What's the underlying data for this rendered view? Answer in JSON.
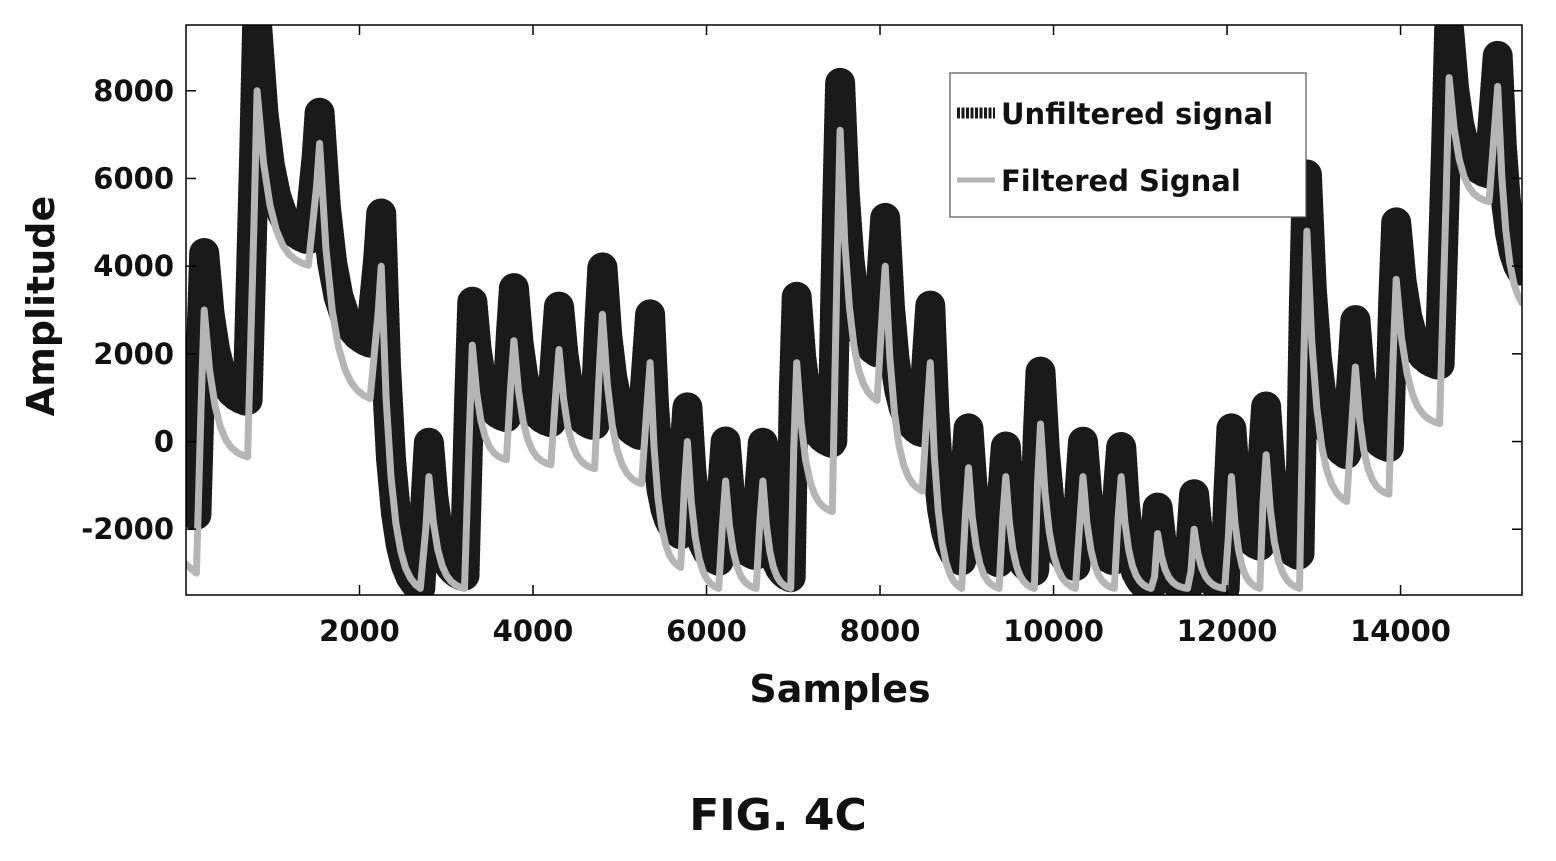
{
  "figure": {
    "caption": "FIG. 4C"
  },
  "colors": {
    "unfiltered": "#1a1a1a",
    "filtered": "#b5b5b5",
    "axis": "#000000"
  },
  "chart_data": {
    "type": "line",
    "title": "",
    "xlabel": "Samples",
    "ylabel": "Amplitude",
    "xlim": [
      0,
      15400
    ],
    "ylim": [
      -3500,
      9500
    ],
    "xticks": [
      2000,
      4000,
      6000,
      8000,
      10000,
      12000,
      14000
    ],
    "xtick_labels": [
      "2000",
      "4000",
      "6000",
      "8000",
      "10000",
      "12000",
      "14000"
    ],
    "yticks": [
      -2000,
      0,
      2000,
      4000,
      6000,
      8000
    ],
    "ytick_labels": [
      "-2000",
      "0",
      "2000",
      "4000",
      "6000",
      "8000"
    ],
    "grid": false,
    "legend_position": "top-right",
    "peaks": {
      "x": [
        210,
        820,
        1540,
        2250,
        2800,
        3300,
        3780,
        4300,
        4800,
        5350,
        5780,
        6220,
        6650,
        7040,
        7540,
        8060,
        8580,
        9020,
        9450,
        9850,
        10340,
        10780,
        11200,
        11620,
        12050,
        12450,
        12920,
        13480,
        13950,
        14560,
        15120
      ],
      "unfiltered": [
        4300,
        9500,
        7500,
        5200,
        0,
        3200,
        3500,
        3100,
        4000,
        2900,
        800,
        0,
        0,
        3300,
        8200,
        5100,
        3100,
        300,
        -100,
        1600,
        0,
        -100,
        -1500,
        -1200,
        300,
        800,
        6100,
        2800,
        5000,
        9400,
        8800
      ],
      "filtered": [
        3000,
        8000,
        6800,
        4000,
        -800,
        2200,
        2300,
        2100,
        2900,
        1800,
        0,
        -900,
        -900,
        1800,
        7100,
        4000,
        1800,
        -600,
        -800,
        400,
        -800,
        -800,
        -2100,
        -2000,
        -800,
        -300,
        4800,
        1700,
        3700,
        8300,
        8100
      ]
    },
    "series": [
      {
        "name": "Unfiltered signal"
      },
      {
        "name": "Filtered Signal"
      }
    ]
  }
}
